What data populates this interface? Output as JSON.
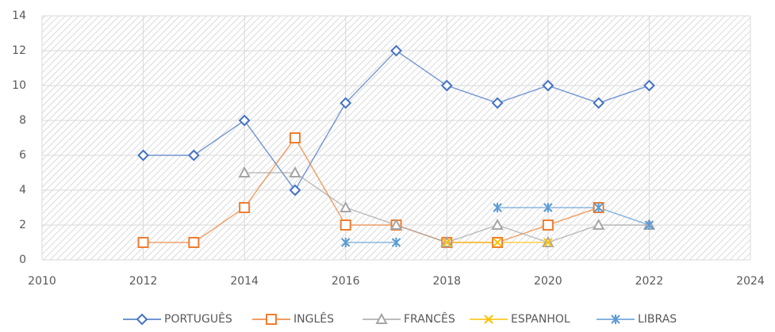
{
  "chart_data": {
    "type": "line",
    "x": [
      2012,
      2013,
      2014,
      2015,
      2016,
      2017,
      2018,
      2019,
      2020,
      2021,
      2022
    ],
    "series": [
      {
        "name": "PORTUGUÊS",
        "color": "#4472c4",
        "marker": "diamond",
        "values": [
          6,
          6,
          8,
          4,
          9,
          12,
          10,
          9,
          10,
          9,
          10
        ]
      },
      {
        "name": "INGLÊS",
        "color": "#ed7d31",
        "marker": "square",
        "values": [
          1,
          1,
          3,
          7,
          2,
          2,
          1,
          1,
          2,
          3,
          null
        ]
      },
      {
        "name": "FRANCÊS",
        "color": "#a5a5a5",
        "marker": "triangle",
        "values": [
          null,
          null,
          5,
          5,
          3,
          2,
          1,
          2,
          1,
          2,
          2
        ]
      },
      {
        "name": "ESPANHOL",
        "color": "#ffc000",
        "marker": "x",
        "values": [
          null,
          null,
          null,
          null,
          null,
          null,
          1,
          1,
          1,
          null,
          null
        ]
      },
      {
        "name": "LIBRAS",
        "color": "#5b9bd5",
        "marker": "asterisk",
        "values": [
          null,
          null,
          null,
          null,
          1,
          1,
          null,
          3,
          3,
          3,
          2
        ]
      }
    ],
    "xlim": [
      2010,
      2024
    ],
    "xticks": [
      2010,
      2012,
      2014,
      2016,
      2018,
      2020,
      2022,
      2024
    ],
    "ylim": [
      0,
      14
    ],
    "yticks": [
      0,
      2,
      4,
      6,
      8,
      10,
      12,
      14
    ],
    "grid": true,
    "legend": "bottom"
  }
}
